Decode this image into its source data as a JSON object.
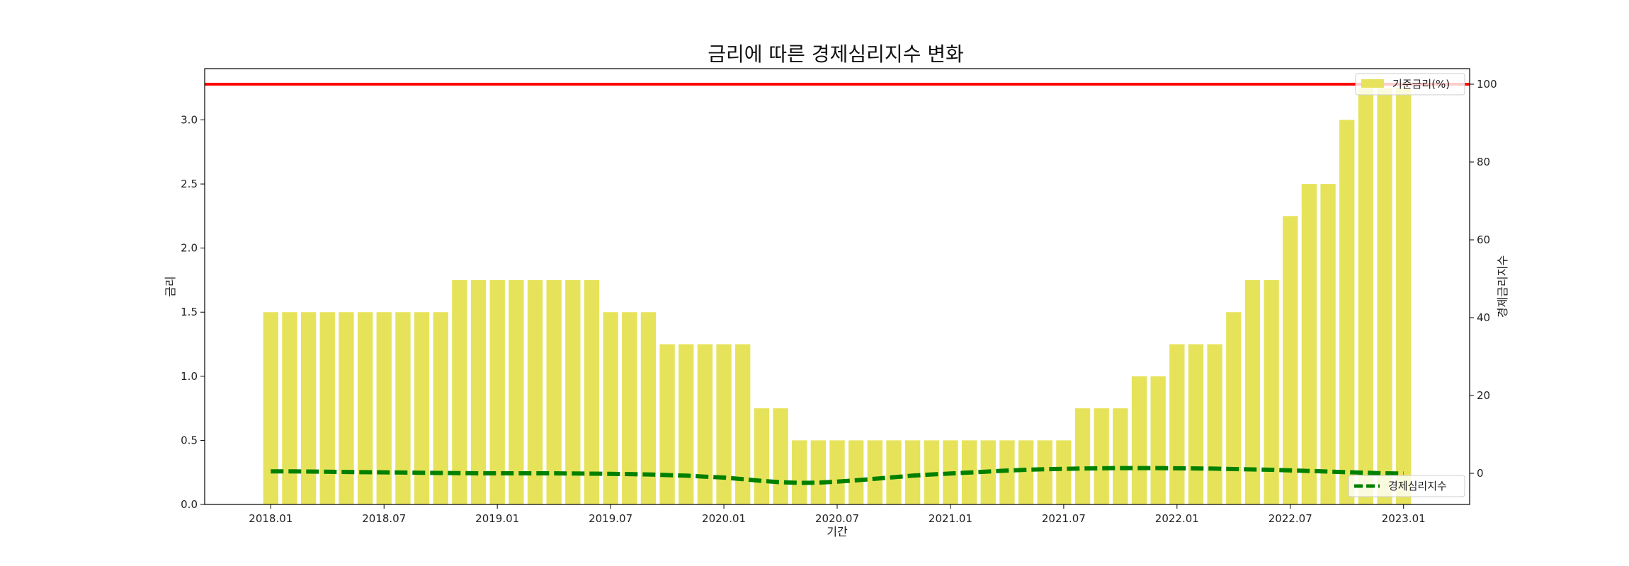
{
  "chart_data": {
    "type": "bar",
    "title": "금리에 따른 경제심리지수 변화",
    "xlabel": "기간",
    "ylabel": "금리",
    "y2label": "경제금리지수",
    "ylim": [
      0,
      3.4
    ],
    "y2lim": [
      -8,
      104
    ],
    "xlim": [
      -3.5,
      63.5
    ],
    "yticks": [
      "0.0",
      "0.5",
      "1.0",
      "1.5",
      "2.0",
      "2.5",
      "3.0"
    ],
    "y2ticks": [
      "0",
      "20",
      "40",
      "60",
      "80",
      "100"
    ],
    "xticks": [
      {
        "index": 0,
        "label": "2018.01"
      },
      {
        "index": 6,
        "label": "2018.07"
      },
      {
        "index": 12,
        "label": "2019.01"
      },
      {
        "index": 18,
        "label": "2019.07"
      },
      {
        "index": 24,
        "label": "2020.01"
      },
      {
        "index": 30,
        "label": "2020.07"
      },
      {
        "index": 36,
        "label": "2021.01"
      },
      {
        "index": 42,
        "label": "2021.07"
      },
      {
        "index": 48,
        "label": "2022.01"
      },
      {
        "index": 54,
        "label": "2022.07"
      },
      {
        "index": 60,
        "label": "2023.01"
      }
    ],
    "categories": [
      "2018.01",
      "2018.02",
      "2018.03",
      "2018.04",
      "2018.05",
      "2018.06",
      "2018.07",
      "2018.08",
      "2018.09",
      "2018.10",
      "2018.11",
      "2018.12",
      "2019.01",
      "2019.02",
      "2019.03",
      "2019.04",
      "2019.05",
      "2019.06",
      "2019.07",
      "2019.08",
      "2019.09",
      "2019.10",
      "2019.11",
      "2019.12",
      "2020.01",
      "2020.02",
      "2020.03",
      "2020.04",
      "2020.05",
      "2020.06",
      "2020.07",
      "2020.08",
      "2020.09",
      "2020.10",
      "2020.11",
      "2020.12",
      "2021.01",
      "2021.02",
      "2021.03",
      "2021.04",
      "2021.05",
      "2021.06",
      "2021.07",
      "2021.08",
      "2021.09",
      "2021.10",
      "2021.11",
      "2021.12",
      "2022.01",
      "2022.02",
      "2022.03",
      "2022.04",
      "2022.05",
      "2022.06",
      "2022.07",
      "2022.08",
      "2022.09",
      "2022.10",
      "2022.11",
      "2022.12",
      "2023.01"
    ],
    "series": [
      {
        "name": "기준금리(%)",
        "kind": "bar",
        "axis": "left",
        "color": "#e6e35a",
        "values": [
          1.5,
          1.5,
          1.5,
          1.5,
          1.5,
          1.5,
          1.5,
          1.5,
          1.5,
          1.5,
          1.75,
          1.75,
          1.75,
          1.75,
          1.75,
          1.75,
          1.75,
          1.75,
          1.5,
          1.5,
          1.5,
          1.25,
          1.25,
          1.25,
          1.25,
          1.25,
          0.75,
          0.75,
          0.5,
          0.5,
          0.5,
          0.5,
          0.5,
          0.5,
          0.5,
          0.5,
          0.5,
          0.5,
          0.5,
          0.5,
          0.5,
          0.5,
          0.5,
          0.75,
          0.75,
          0.75,
          1.0,
          1.0,
          1.25,
          1.25,
          1.25,
          1.5,
          1.75,
          1.75,
          2.25,
          2.5,
          2.5,
          3.0,
          3.25,
          3.25,
          3.25
        ]
      },
      {
        "name": "경제심리지수",
        "kind": "line",
        "axis": "right",
        "color": "#008000",
        "values": [
          0.5,
          0.5,
          0.45,
          0.4,
          0.35,
          0.3,
          0.25,
          0.2,
          0.15,
          0.1,
          0.05,
          0.0,
          0.0,
          0.0,
          0.0,
          0.0,
          -0.05,
          -0.1,
          -0.15,
          -0.2,
          -0.3,
          -0.45,
          -0.6,
          -0.85,
          -1.1,
          -1.5,
          -1.95,
          -2.3,
          -2.45,
          -2.4,
          -2.15,
          -1.8,
          -1.4,
          -1.0,
          -0.6,
          -0.3,
          -0.05,
          0.2,
          0.45,
          0.7,
          0.9,
          1.05,
          1.15,
          1.25,
          1.3,
          1.35,
          1.35,
          1.35,
          1.3,
          1.25,
          1.2,
          1.1,
          1.0,
          0.9,
          0.75,
          0.6,
          0.45,
          0.3,
          0.15,
          0.0,
          -0.05
        ]
      }
    ],
    "reference_line": {
      "axis": "right",
      "value": 100,
      "color": "#ff0000"
    },
    "legend": [
      {
        "label": "기준금리(%)",
        "placement": "top-right"
      },
      {
        "label": "경제심리지수",
        "placement": "bottom-right"
      }
    ],
    "grid": false
  }
}
